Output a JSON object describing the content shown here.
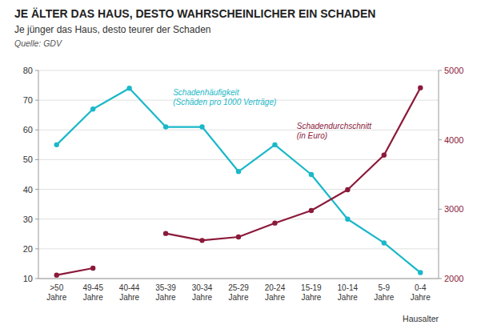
{
  "chart_data": {
    "type": "line",
    "title": "JE ÄLTER DAS HAUS, DESTO WAHRSCHEINLICHER EIN SCHADEN",
    "subtitle": "Je jünger das Haus, desto teurer der Schaden",
    "source": "Quelle: GDV",
    "x_label": "Hausalter",
    "categories": [
      ">50\nJahre",
      "49-45\nJahre",
      "40-44\nJahre",
      "35-39\nJahre",
      "30-34\nJahre",
      "25-29\nJahre",
      "20-24\nJahre",
      "15-19\nJahre",
      "10-14\nJahre",
      "5-9\nJahre",
      "0-4\nJahre"
    ],
    "series": [
      {
        "color": "#1ab8c8",
        "marker": "circle",
        "values": [
          55,
          67,
          74,
          61,
          61,
          46,
          55,
          45,
          30,
          22,
          12
        ]
      },
      {
        "color": "#8b1a3a",
        "marker": "circle",
        "axis": "y2",
        "values": [
          2050,
          2150,
          null,
          2650,
          2550,
          2600,
          2800,
          2980,
          3280,
          3780,
          4750
        ]
      }
    ],
    "ylim": [
      10,
      80
    ],
    "yticks": [
      10,
      20,
      30,
      40,
      50,
      60,
      70,
      80
    ],
    "y2lim": [
      2000,
      5000
    ],
    "y2ticks": [
      2000,
      3000,
      4000,
      5000
    ],
    "grid": true,
    "annotations": [
      "Schadenhäufigkeit\n(Schäden pro 1000 Verträge)",
      "Schadendurchschnitt\n(in Euro)"
    ]
  }
}
